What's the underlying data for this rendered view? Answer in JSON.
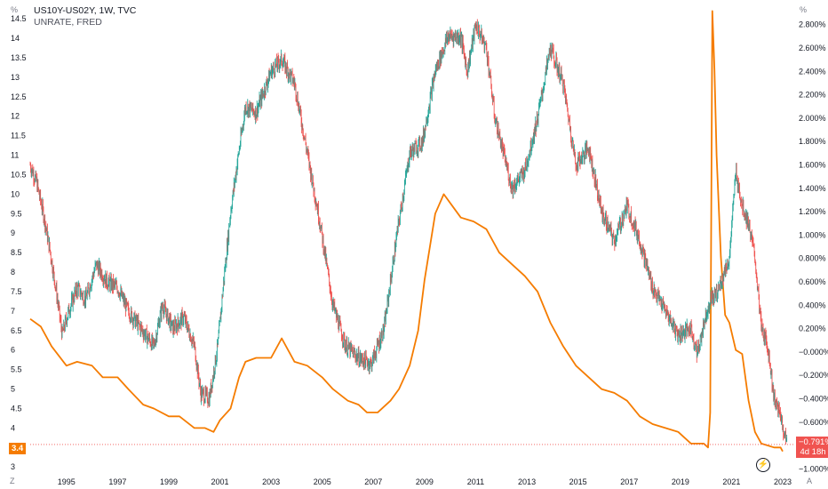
{
  "legend": {
    "line1": "US10Y-US02Y, 1W, TVC",
    "line2": "UNRATE, FRED"
  },
  "corners": {
    "top_left": "%",
    "top_right": "%",
    "bottom_left": "Z",
    "bottom_right": "A"
  },
  "badges": {
    "left_value": "3.4",
    "right_value": "−0.791%",
    "right_countdown": "4d 18h"
  },
  "colors": {
    "unrate_line": "#f57c00",
    "spread_up": "#26a69a",
    "spread_down": "#ef5350",
    "left_badge": "#f57c00",
    "right_badge": "#f05350",
    "grid": "#f0f3fa",
    "axis_text": "#131722"
  },
  "icons": {
    "bolt": "lightning-bolt-icon"
  },
  "chart_data": {
    "type": "line",
    "grid": false,
    "x_axis": {
      "type": "date",
      "tick_labels": [
        "1995",
        "1997",
        "1999",
        "2001",
        "2003",
        "2005",
        "2007",
        "2009",
        "2011",
        "2013",
        "2015",
        "2017",
        "2019",
        "2021",
        "2023"
      ],
      "range": [
        "1993-08",
        "2023-06"
      ]
    },
    "left_axis": {
      "unit": "%",
      "range": [
        2.8,
        14.8
      ],
      "tick_labels": [
        "3",
        "3.5",
        "4",
        "4.5",
        "5",
        "5.5",
        "6",
        "6.5",
        "7",
        "7.5",
        "8",
        "8.5",
        "9",
        "9.5",
        "10",
        "10.5",
        "11",
        "11.5",
        "12",
        "12.5",
        "13",
        "13.5",
        "14",
        "14.5"
      ]
    },
    "right_axis": {
      "unit": "%",
      "range": [
        -1.05,
        2.95
      ],
      "tick_labels": [
        "−1.000%",
        "−0.800%",
        "−0.600%",
        "−0.400%",
        "−0.200%",
        "−0.000%",
        "0.200%",
        "0.400%",
        "0.600%",
        "0.800%",
        "1.000%",
        "1.200%",
        "1.400%",
        "1.600%",
        "1.800%",
        "2.000%",
        "2.200%",
        "2.400%",
        "2.600%",
        "2.800%"
      ]
    },
    "series": [
      {
        "name": "UNRATE, FRED",
        "axis": "left",
        "style": "line",
        "points": [
          [
            "1993-08",
            6.8
          ],
          [
            "1994-01",
            6.6
          ],
          [
            "1994-06",
            6.1
          ],
          [
            "1995-01",
            5.6
          ],
          [
            "1995-06",
            5.7
          ],
          [
            "1996-01",
            5.6
          ],
          [
            "1996-06",
            5.3
          ],
          [
            "1997-01",
            5.3
          ],
          [
            "1997-06",
            5.0
          ],
          [
            "1998-01",
            4.6
          ],
          [
            "1998-06",
            4.5
          ],
          [
            "1999-01",
            4.3
          ],
          [
            "1999-06",
            4.3
          ],
          [
            "2000-01",
            4.0
          ],
          [
            "2000-06",
            4.0
          ],
          [
            "2000-10",
            3.9
          ],
          [
            "2001-01",
            4.2
          ],
          [
            "2001-06",
            4.5
          ],
          [
            "2001-10",
            5.3
          ],
          [
            "2002-01",
            5.7
          ],
          [
            "2002-06",
            5.8
          ],
          [
            "2003-01",
            5.8
          ],
          [
            "2003-06",
            6.3
          ],
          [
            "2003-12",
            5.7
          ],
          [
            "2004-06",
            5.6
          ],
          [
            "2005-01",
            5.3
          ],
          [
            "2005-06",
            5.0
          ],
          [
            "2006-01",
            4.7
          ],
          [
            "2006-06",
            4.6
          ],
          [
            "2006-10",
            4.4
          ],
          [
            "2007-03",
            4.4
          ],
          [
            "2007-09",
            4.7
          ],
          [
            "2008-01",
            5.0
          ],
          [
            "2008-06",
            5.6
          ],
          [
            "2008-10",
            6.5
          ],
          [
            "2009-01",
            7.8
          ],
          [
            "2009-06",
            9.5
          ],
          [
            "2009-10",
            10.0
          ],
          [
            "2010-06",
            9.4
          ],
          [
            "2010-12",
            9.3
          ],
          [
            "2011-06",
            9.1
          ],
          [
            "2011-12",
            8.5
          ],
          [
            "2012-06",
            8.2
          ],
          [
            "2012-12",
            7.9
          ],
          [
            "2013-06",
            7.5
          ],
          [
            "2013-12",
            6.7
          ],
          [
            "2014-06",
            6.1
          ],
          [
            "2014-12",
            5.6
          ],
          [
            "2015-06",
            5.3
          ],
          [
            "2015-12",
            5.0
          ],
          [
            "2016-06",
            4.9
          ],
          [
            "2016-12",
            4.7
          ],
          [
            "2017-06",
            4.3
          ],
          [
            "2017-12",
            4.1
          ],
          [
            "2018-06",
            4.0
          ],
          [
            "2018-12",
            3.9
          ],
          [
            "2019-06",
            3.6
          ],
          [
            "2019-12",
            3.6
          ],
          [
            "2020-02",
            3.5
          ],
          [
            "2020-03",
            4.4
          ],
          [
            "2020-04",
            14.7
          ],
          [
            "2020-05",
            13.2
          ],
          [
            "2020-06",
            11.0
          ],
          [
            "2020-08",
            8.4
          ],
          [
            "2020-10",
            6.9
          ],
          [
            "2020-12",
            6.7
          ],
          [
            "2021-03",
            6.0
          ],
          [
            "2021-06",
            5.9
          ],
          [
            "2021-09",
            4.7
          ],
          [
            "2021-12",
            3.9
          ],
          [
            "2022-03",
            3.6
          ],
          [
            "2022-09",
            3.5
          ],
          [
            "2022-12",
            3.5
          ],
          [
            "2023-01",
            3.4
          ]
        ]
      },
      {
        "name": "US10Y-US02Y, 1W, TVC",
        "axis": "right",
        "style": "candles",
        "points": [
          [
            "1993-08",
            1.6
          ],
          [
            "1993-11",
            1.45
          ],
          [
            "1994-02",
            1.2
          ],
          [
            "1994-05",
            0.9
          ],
          [
            "1994-08",
            0.55
          ],
          [
            "1994-11",
            0.15
          ],
          [
            "1995-02",
            0.35
          ],
          [
            "1995-06",
            0.55
          ],
          [
            "1995-10",
            0.45
          ],
          [
            "1996-03",
            0.75
          ],
          [
            "1996-08",
            0.6
          ],
          [
            "1997-01",
            0.55
          ],
          [
            "1997-06",
            0.35
          ],
          [
            "1997-12",
            0.2
          ],
          [
            "1998-06",
            0.05
          ],
          [
            "1998-10",
            0.4
          ],
          [
            "1999-03",
            0.2
          ],
          [
            "1999-08",
            0.3
          ],
          [
            "2000-01",
            0.05
          ],
          [
            "2000-04",
            -0.35
          ],
          [
            "2000-08",
            -0.4
          ],
          [
            "2000-12",
            0.05
          ],
          [
            "2001-03",
            0.65
          ],
          [
            "2001-06",
            1.2
          ],
          [
            "2001-09",
            1.6
          ],
          [
            "2002-01",
            2.1
          ],
          [
            "2002-06",
            2.05
          ],
          [
            "2003-01",
            2.4
          ],
          [
            "2003-06",
            2.5
          ],
          [
            "2003-12",
            2.3
          ],
          [
            "2004-06",
            1.7
          ],
          [
            "2004-12",
            1.1
          ],
          [
            "2005-06",
            0.4
          ],
          [
            "2005-12",
            0.05
          ],
          [
            "2006-06",
            -0.05
          ],
          [
            "2006-12",
            -0.1
          ],
          [
            "2007-06",
            0.2
          ],
          [
            "2007-12",
            1.0
          ],
          [
            "2008-06",
            1.7
          ],
          [
            "2008-12",
            1.8
          ],
          [
            "2009-06",
            2.4
          ],
          [
            "2009-12",
            2.7
          ],
          [
            "2010-06",
            2.7
          ],
          [
            "2010-09",
            2.4
          ],
          [
            "2011-01",
            2.8
          ],
          [
            "2011-06",
            2.6
          ],
          [
            "2011-10",
            2.0
          ],
          [
            "2012-06",
            1.4
          ],
          [
            "2012-12",
            1.55
          ],
          [
            "2013-06",
            2.0
          ],
          [
            "2013-12",
            2.6
          ],
          [
            "2014-06",
            2.3
          ],
          [
            "2014-12",
            1.6
          ],
          [
            "2015-06",
            1.75
          ],
          [
            "2015-12",
            1.2
          ],
          [
            "2016-06",
            0.95
          ],
          [
            "2016-12",
            1.25
          ],
          [
            "2017-06",
            0.95
          ],
          [
            "2017-12",
            0.55
          ],
          [
            "2018-06",
            0.35
          ],
          [
            "2018-12",
            0.15
          ],
          [
            "2019-06",
            0.2
          ],
          [
            "2019-09",
            -0.02
          ],
          [
            "2019-12",
            0.25
          ],
          [
            "2020-03",
            0.45
          ],
          [
            "2020-06",
            0.5
          ],
          [
            "2020-12",
            0.8
          ],
          [
            "2021-03",
            1.55
          ],
          [
            "2021-06",
            1.25
          ],
          [
            "2021-09",
            1.1
          ],
          [
            "2021-12",
            0.8
          ],
          [
            "2022-03",
            0.2
          ],
          [
            "2022-06",
            0.05
          ],
          [
            "2022-09",
            -0.4
          ],
          [
            "2022-12",
            -0.55
          ],
          [
            "2023-03",
            -0.79
          ]
        ]
      }
    ],
    "current_values": {
      "left": 3.4,
      "right": -0.791
    }
  }
}
